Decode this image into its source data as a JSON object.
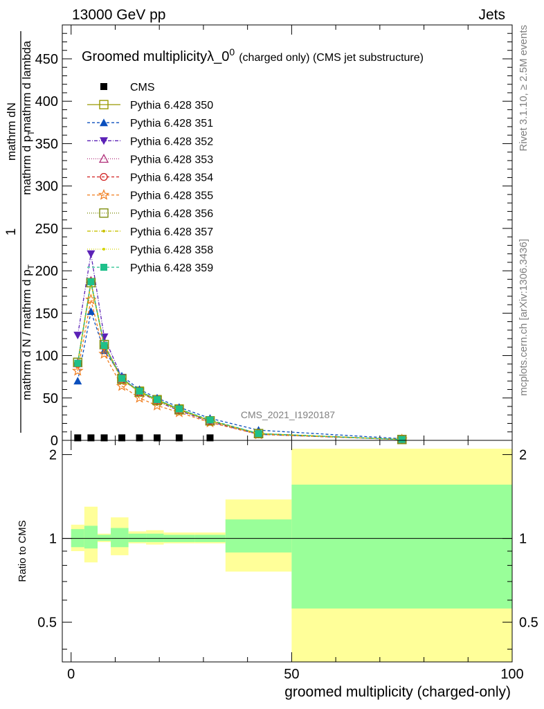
{
  "header": {
    "left": "13000 GeV pp",
    "right": "Jets"
  },
  "side": {
    "top": "Rivet 3.1.10, ≥ 2.5M events",
    "bottom": "mcplots.cern.ch [arXiv:1306.3436]"
  },
  "watermark": "CMS_2021_I1920187",
  "colors": {
    "cms": "#000000",
    "s350": "#999900",
    "s351": "#0b4fbd",
    "s352": "#5b21b6",
    "s353": "#b0307a",
    "s354": "#d11f1f",
    "s355": "#f07c1c",
    "s356": "#7f8f10",
    "s357": "#c8c000",
    "s358": "#d4d400",
    "s359": "#1ec08a",
    "band_inner": "#99ff99",
    "band_outer": "#ffff99"
  },
  "chart_data": [
    {
      "type": "line",
      "title": "Groomed multiplicityλ_0",
      "title_sup": "0",
      "title_suffix": "(charged only) (CMS jet substructure)",
      "ylabel_num": "1",
      "ylabel_frac_num": "mathrm dN",
      "ylabel_frac_den_a": "mathrm d N / mathrm d p",
      "ylabel_frac_den_b": "mathrm d p",
      "ylabel_frac_den_c": "mathrm d lambda",
      "ylabel_sub": "T",
      "xlim": [
        -2,
        100
      ],
      "ylim": [
        0,
        490
      ],
      "yticks": [
        0,
        50,
        100,
        150,
        200,
        250,
        300,
        350,
        400,
        450
      ],
      "x": [
        1.5,
        4.5,
        7.5,
        11.5,
        15.5,
        19.5,
        24.5,
        31.5,
        42.5,
        75
      ],
      "series": [
        {
          "name": "CMS",
          "key": "cms",
          "marker": "square-filled",
          "dash": "",
          "values": [
            0.5,
            0.5,
            0.5,
            0.5,
            0.5,
            0.5,
            0.5,
            0.5,
            0,
            0
          ]
        },
        {
          "name": "Pythia 6.428 350",
          "key": "s350",
          "marker": "square-open",
          "dash": "",
          "values": [
            92,
            186,
            113,
            73,
            58,
            48,
            37,
            23,
            8,
            1
          ]
        },
        {
          "name": "Pythia 6.428 351",
          "key": "s351",
          "marker": "triangle-up-filled",
          "dash": "4,3",
          "values": [
            70,
            152,
            106,
            76,
            60,
            50,
            39,
            26,
            12,
            2
          ]
        },
        {
          "name": "Pythia 6.428 352",
          "key": "s352",
          "marker": "triangle-down-filled",
          "dash": "5,2,1,2",
          "values": [
            124,
            220,
            122,
            74,
            57,
            46,
            35,
            22,
            7,
            1
          ]
        },
        {
          "name": "Pythia 6.428 353",
          "key": "s353",
          "marker": "triangle-up-open",
          "dash": "1,2",
          "values": [
            91,
            188,
            112,
            72,
            57,
            47,
            36,
            23,
            8,
            1
          ]
        },
        {
          "name": "Pythia 6.428 354",
          "key": "s354",
          "marker": "circle-open",
          "dash": "4,3",
          "values": [
            90,
            187,
            111,
            72,
            57,
            47,
            36,
            23,
            8,
            1
          ]
        },
        {
          "name": "Pythia 6.428 355",
          "key": "s355",
          "marker": "star-open",
          "dash": "4,3",
          "values": [
            82,
            166,
            102,
            64,
            50,
            41,
            33,
            21,
            7,
            1
          ]
        },
        {
          "name": "Pythia 6.428 356",
          "key": "s356",
          "marker": "square-open",
          "dash": "1,2",
          "values": [
            92,
            186,
            113,
            72,
            57,
            47,
            36,
            23,
            8,
            1
          ]
        },
        {
          "name": "Pythia 6.428 357",
          "key": "s357",
          "marker": "dot",
          "dash": "5,2,1,2",
          "values": [
            91,
            185,
            112,
            72,
            57,
            47,
            36,
            23,
            8,
            1
          ]
        },
        {
          "name": "Pythia 6.428 358",
          "key": "s358",
          "marker": "dot",
          "dash": "1,2",
          "values": [
            91,
            186,
            112,
            72,
            57,
            47,
            36,
            23,
            8,
            1
          ]
        },
        {
          "name": "Pythia 6.428 359",
          "key": "s359",
          "marker": "square-filled",
          "dash": "4,3",
          "values": [
            91,
            187,
            112,
            73,
            58,
            48,
            37,
            24,
            8,
            1
          ]
        }
      ]
    },
    {
      "type": "area",
      "ylabel": "Ratio to CMS",
      "xlabel": "groomed multiplicity (charged-only)",
      "xlim": [
        -2,
        100
      ],
      "ylim": [
        0.36,
        2.25
      ],
      "yticks": [
        0.5,
        1,
        2
      ],
      "xticks": [
        0,
        50,
        100
      ],
      "bins": [
        {
          "lo": 0,
          "hi": 3,
          "inner": [
            0.93,
            1.08
          ],
          "outer": [
            0.9,
            1.12
          ]
        },
        {
          "lo": 3,
          "hi": 6,
          "inner": [
            0.92,
            1.11
          ],
          "outer": [
            0.82,
            1.3
          ]
        },
        {
          "lo": 6,
          "hi": 9,
          "inner": [
            0.98,
            1.03
          ],
          "outer": [
            0.97,
            1.04
          ]
        },
        {
          "lo": 9,
          "hi": 13,
          "inner": [
            0.93,
            1.09
          ],
          "outer": [
            0.87,
            1.19
          ]
        },
        {
          "lo": 13,
          "hi": 17,
          "inner": [
            0.97,
            1.04
          ],
          "outer": [
            0.96,
            1.06
          ]
        },
        {
          "lo": 17,
          "hi": 21,
          "inner": [
            0.97,
            1.04
          ],
          "outer": [
            0.95,
            1.07
          ]
        },
        {
          "lo": 21,
          "hi": 28,
          "inner": [
            0.97,
            1.03
          ],
          "outer": [
            0.96,
            1.05
          ]
        },
        {
          "lo": 28,
          "hi": 35,
          "inner": [
            0.97,
            1.03
          ],
          "outer": [
            0.96,
            1.05
          ]
        },
        {
          "lo": 35,
          "hi": 50,
          "inner": [
            0.89,
            1.17
          ],
          "outer": [
            0.76,
            1.38
          ]
        },
        {
          "lo": 50,
          "hi": 100,
          "inner": [
            0.56,
            1.56
          ],
          "outer": [
            0.36,
            2.1
          ]
        }
      ]
    }
  ]
}
